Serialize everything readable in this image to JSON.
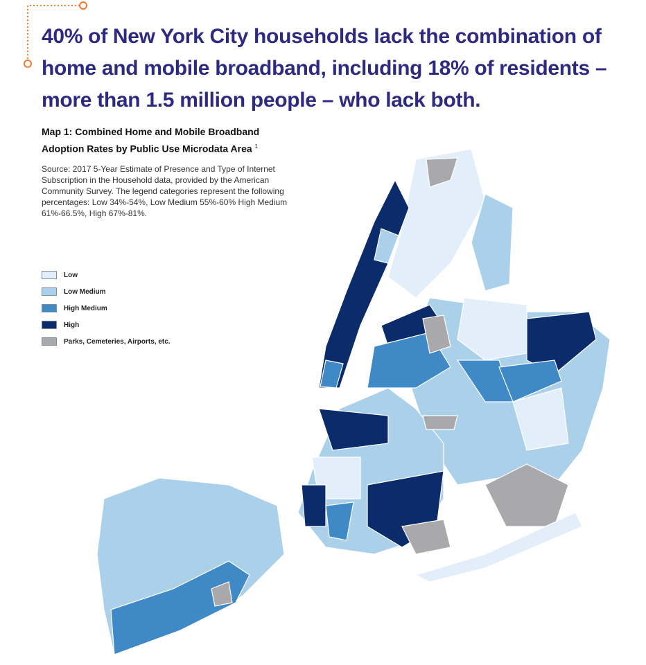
{
  "headline": [
    "40% of New York City households lack the combination of",
    "home and mobile broadband, including 18% of residents –",
    "more than 1.5 million people – who lack both."
  ],
  "map": {
    "title": "Map 1: Combined Home and Mobile Broadband Adoption Rates by Public Use Microdata Area",
    "footnote_mark": "1",
    "source": "Source: 2017 5-Year Estimate of Presence and Type of Internet Subscription in the Household data, provided by the American Community Survey. The legend categories represent the following percentages: Low 34%-54%, Low Medium 55%-60% High Medium 61%-66.5%, High 67%-81%.",
    "legend": [
      {
        "label": "Low",
        "color": "#e2effa"
      },
      {
        "label": "Low Medium",
        "color": "#abd0ea"
      },
      {
        "label": "High Medium",
        "color": "#3f8ac6"
      },
      {
        "label": "High",
        "color": "#0b2b6b"
      },
      {
        "label": "Parks, Cemeteries, Airports, etc.",
        "color": "#a9a9ab"
      }
    ]
  }
}
